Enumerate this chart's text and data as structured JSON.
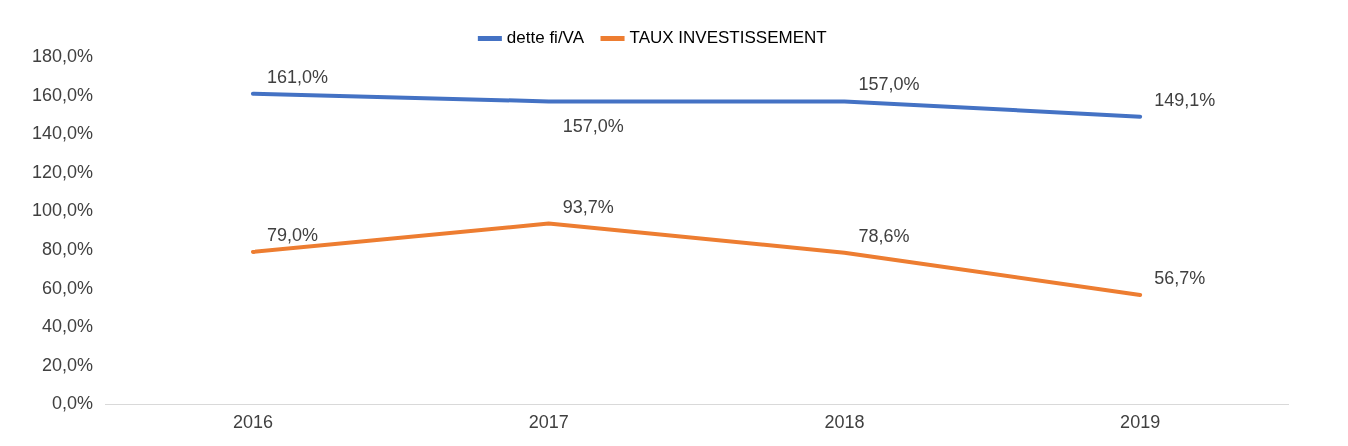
{
  "chart_data": {
    "type": "line",
    "categories": [
      "2016",
      "2017",
      "2018",
      "2019"
    ],
    "series": [
      {
        "name": "dette fi/VA",
        "color": "#4472c4",
        "values": [
          161.0,
          157.0,
          157.0,
          149.1
        ],
        "value_labels": [
          "161,0%",
          "157,0%",
          "157,0%",
          "149,1%"
        ]
      },
      {
        "name": "TAUX INVESTISSEMENT",
        "color": "#ed7d31",
        "values": [
          79.0,
          93.7,
          78.6,
          56.7
        ],
        "value_labels": [
          "79,0%",
          "93,7%",
          "78,6%",
          "56,7%"
        ]
      }
    ],
    "ylim": [
      0,
      180
    ],
    "yticks": [
      {
        "value": 0,
        "label": "0,0%"
      },
      {
        "value": 20,
        "label": "20,0%"
      },
      {
        "value": 40,
        "label": "40,0%"
      },
      {
        "value": 60,
        "label": "60,0%"
      },
      {
        "value": 80,
        "label": "80,0%"
      },
      {
        "value": 100,
        "label": "100,0%"
      },
      {
        "value": 120,
        "label": "120,0%"
      },
      {
        "value": 140,
        "label": "140,0%"
      },
      {
        "value": 160,
        "label": "160,0%"
      },
      {
        "value": 180,
        "label": "180,0%"
      }
    ],
    "grid": false,
    "legend": "top",
    "marker": "none",
    "line_style": "solid"
  }
}
